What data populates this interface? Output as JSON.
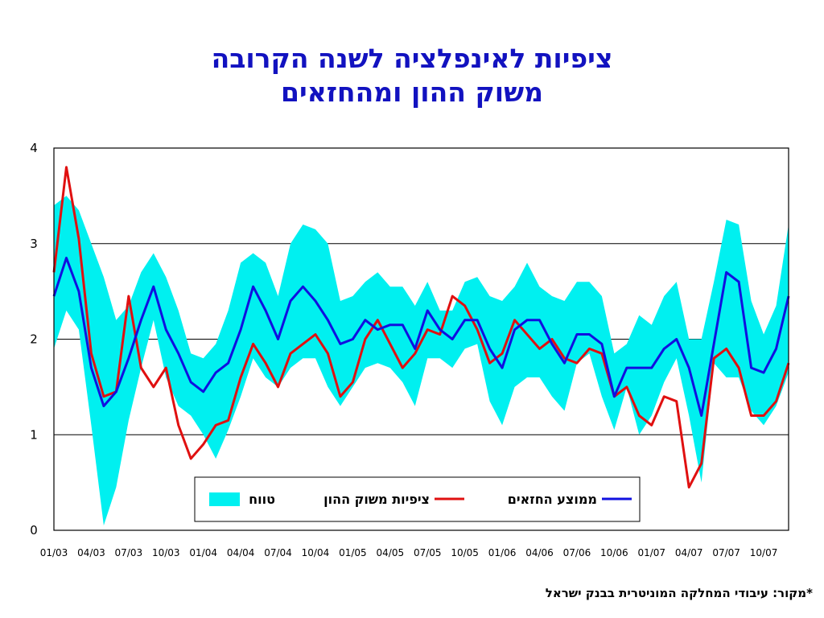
{
  "title_line1": "ציפיות לאינפלציה לשנה הקרובה",
  "title_line2": "משוק ההון ומהחזאים",
  "source": "*מקור: עיבודי המחלקה המוניטרית בבנק ישראל",
  "colors": {
    "range": "#00f0f0",
    "capital_market": "#e01010",
    "forecasters": "#1010e0",
    "title": "#1212c0"
  },
  "chart_data": {
    "type": "line",
    "ylim": [
      0,
      4
    ],
    "y_ticks": [
      0,
      1,
      2,
      3,
      4
    ],
    "x_tick_labels": [
      "01/03",
      "04/03",
      "07/03",
      "10/03",
      "01/04",
      "04/04",
      "07/04",
      "10/04",
      "01/05",
      "04/05",
      "07/05",
      "10/05",
      "01/06",
      "04/06",
      "07/06",
      "10/06",
      "01/07",
      "04/07",
      "07/07",
      "10/07"
    ],
    "grid": "horizontal",
    "legend": "bottom-right",
    "period_labels": [
      "01/03",
      "02/03",
      "03/03",
      "04/03",
      "05/03",
      "06/03",
      "07/03",
      "08/03",
      "09/03",
      "10/03",
      "11/03",
      "12/03",
      "01/04",
      "02/04",
      "03/04",
      "04/04",
      "05/04",
      "06/04",
      "07/04",
      "08/04",
      "09/04",
      "10/04",
      "11/04",
      "12/04",
      "01/05",
      "02/05",
      "03/05",
      "04/05",
      "05/05",
      "06/05",
      "07/05",
      "08/05",
      "09/05",
      "10/05",
      "11/05",
      "12/05",
      "01/06",
      "02/06",
      "03/06",
      "04/06",
      "05/06",
      "06/06",
      "07/06",
      "08/06",
      "09/06",
      "10/06",
      "11/06",
      "12/06",
      "01/07",
      "02/07",
      "03/07",
      "04/07",
      "05/07",
      "06/07",
      "07/07",
      "08/07",
      "09/07",
      "10/07",
      "11/07",
      "12/07"
    ],
    "series": [
      {
        "name": "טווח",
        "type": "band",
        "upper": [
          3.4,
          3.5,
          3.35,
          3.0,
          2.65,
          2.2,
          2.35,
          2.7,
          2.9,
          2.65,
          2.3,
          1.85,
          1.8,
          1.95,
          2.3,
          2.8,
          2.9,
          2.8,
          2.45,
          3.0,
          3.2,
          3.15,
          3.0,
          2.4,
          2.45,
          2.6,
          2.7,
          2.55,
          2.55,
          2.35,
          2.6,
          2.3,
          2.3,
          2.6,
          2.65,
          2.45,
          2.4,
          2.55,
          2.8,
          2.55,
          2.45,
          2.4,
          2.6,
          2.6,
          2.45,
          1.85,
          1.95,
          2.25,
          2.15,
          2.45,
          2.6,
          2.0,
          2.0,
          2.6,
          3.25,
          3.2,
          2.4,
          2.05,
          2.35,
          3.2
        ],
        "lower": [
          1.9,
          2.3,
          2.1,
          1.1,
          0.05,
          0.45,
          1.15,
          1.7,
          2.2,
          1.6,
          1.3,
          1.2,
          1.0,
          0.75,
          1.05,
          1.4,
          1.8,
          1.6,
          1.5,
          1.7,
          1.8,
          1.8,
          1.5,
          1.3,
          1.5,
          1.7,
          1.75,
          1.7,
          1.55,
          1.3,
          1.8,
          1.8,
          1.7,
          1.9,
          1.95,
          1.35,
          1.1,
          1.5,
          1.6,
          1.6,
          1.4,
          1.25,
          1.75,
          1.85,
          1.4,
          1.05,
          1.5,
          1.0,
          1.2,
          1.55,
          1.8,
          1.2,
          0.5,
          1.75,
          1.6,
          1.6,
          1.25,
          1.1,
          1.3,
          1.65
        ]
      },
      {
        "name": "ציפיות משוק ההון",
        "values": [
          2.7,
          3.8,
          3.05,
          1.85,
          1.4,
          1.45,
          2.45,
          1.7,
          1.5,
          1.7,
          1.1,
          0.75,
          0.9,
          1.1,
          1.15,
          1.6,
          1.95,
          1.75,
          1.5,
          1.85,
          1.95,
          2.05,
          1.85,
          1.4,
          1.55,
          2.0,
          2.2,
          1.95,
          1.7,
          1.85,
          2.1,
          2.05,
          2.45,
          2.35,
          2.1,
          1.75,
          1.85,
          2.2,
          2.05,
          1.9,
          2.0,
          1.8,
          1.75,
          1.9,
          1.85,
          1.4,
          1.5,
          1.2,
          1.1,
          1.4,
          1.35,
          0.45,
          0.7,
          1.8,
          1.9,
          1.7,
          1.2,
          1.2,
          1.35,
          1.75
        ]
      },
      {
        "name": "ממוצע החזאים",
        "values": [
          2.45,
          2.85,
          2.5,
          1.7,
          1.3,
          1.45,
          1.8,
          2.2,
          2.55,
          2.1,
          1.85,
          1.55,
          1.45,
          1.65,
          1.75,
          2.1,
          2.55,
          2.3,
          2.0,
          2.4,
          2.55,
          2.4,
          2.2,
          1.95,
          2.0,
          2.2,
          2.1,
          2.15,
          2.15,
          1.9,
          2.3,
          2.1,
          2.0,
          2.2,
          2.2,
          1.9,
          1.7,
          2.1,
          2.2,
          2.2,
          1.95,
          1.75,
          2.05,
          2.05,
          1.95,
          1.4,
          1.7,
          1.7,
          1.7,
          1.9,
          2.0,
          1.7,
          1.2,
          1.95,
          2.7,
          2.6,
          1.7,
          1.65,
          1.9,
          2.45
        ]
      }
    ]
  }
}
